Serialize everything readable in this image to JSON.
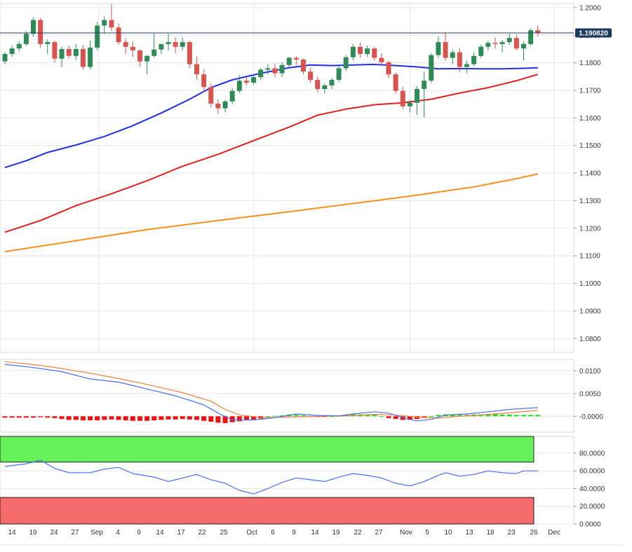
{
  "colors": {
    "up": "#2e8b57",
    "down": "#d9534f",
    "sma_short": "#2030e0",
    "sma_mid": "#e02020",
    "sma_long": "#f5901e",
    "macd_line": "#4a6cf0",
    "signal_line": "#f08040",
    "hist_pos": "#22dd22",
    "hist_neg": "#ee1111",
    "rsi_line": "#4a6cf0",
    "overbought": "#66f05a",
    "oversold": "#f56b6b",
    "grid": "#e6e6e6",
    "price_tag": "#1f3a5f"
  },
  "chart_data": [
    {
      "type": "candlestick",
      "panel": "price",
      "ylim": [
        1.075,
        1.2015
      ],
      "y_ticks": [
        "1.2000",
        "1.1900",
        "1.1800",
        "1.1700",
        "1.1600",
        "1.1500",
        "1.1400",
        "1.1300",
        "1.1200",
        "1.1100",
        "1.1000",
        "1.0900",
        "1.0800"
      ],
      "y_tick_values": [
        1.2,
        1.19,
        1.18,
        1.17,
        1.16,
        1.15,
        1.14,
        1.13,
        1.12,
        1.11,
        1.1,
        1.09,
        1.08
      ],
      "last_price": "1.190820",
      "last_price_value": 1.19082,
      "x_labels": [
        "14",
        "19",
        "24",
        "27",
        "Sep",
        "4",
        "9",
        "14",
        "17",
        "22",
        "25",
        "Oct",
        "6",
        "9",
        "14",
        "19",
        "22",
        "27",
        "Nov",
        "5",
        "10",
        "13",
        "18",
        "23",
        "26",
        "Dec"
      ],
      "candles": [
        [
          1.1805,
          1.1838,
          1.1795,
          1.1832
        ],
        [
          1.1832,
          1.1862,
          1.1822,
          1.1852
        ],
        [
          1.1852,
          1.1878,
          1.1842,
          1.1868
        ],
        [
          1.1868,
          1.1915,
          1.1862,
          1.1905
        ],
        [
          1.1905,
          1.1965,
          1.1895,
          1.1955
        ],
        [
          1.1955,
          1.1962,
          1.1855,
          1.1868
        ],
        [
          1.1868,
          1.1885,
          1.1832,
          1.1875
        ],
        [
          1.1875,
          1.188,
          1.18,
          1.1815
        ],
        [
          1.1815,
          1.1858,
          1.1785,
          1.185
        ],
        [
          1.185,
          1.1862,
          1.1815,
          1.1825
        ],
        [
          1.1825,
          1.1868,
          1.181,
          1.185
        ],
        [
          1.185,
          1.1865,
          1.1775,
          1.1785
        ],
        [
          1.1785,
          1.188,
          1.1775,
          1.1855
        ],
        [
          1.1855,
          1.1948,
          1.1845,
          1.1935
        ],
        [
          1.1935,
          1.1968,
          1.1905,
          1.1955
        ],
        [
          1.1955,
          1.2012,
          1.1915,
          1.1928
        ],
        [
          1.1928,
          1.1942,
          1.1865,
          1.1875
        ],
        [
          1.1875,
          1.1888,
          1.1832,
          1.1858
        ],
        [
          1.1858,
          1.1878,
          1.1822,
          1.1845
        ],
        [
          1.1845,
          1.1848,
          1.1785,
          1.1805
        ],
        [
          1.1805,
          1.1828,
          1.1758,
          1.1825
        ],
        [
          1.1825,
          1.1908,
          1.1818,
          1.1848
        ],
        [
          1.1848,
          1.1868,
          1.1832,
          1.1868
        ],
        [
          1.1868,
          1.1905,
          1.1845,
          1.1875
        ],
        [
          1.1875,
          1.1892,
          1.1835,
          1.1858
        ],
        [
          1.1858,
          1.1892,
          1.1845,
          1.1875
        ],
        [
          1.1875,
          1.188,
          1.178,
          1.1795
        ],
        [
          1.1795,
          1.1822,
          1.1738,
          1.1758
        ],
        [
          1.1758,
          1.1778,
          1.1695,
          1.1712
        ],
        [
          1.1712,
          1.1725,
          1.1638,
          1.1652
        ],
        [
          1.1652,
          1.1668,
          1.1615,
          1.1635
        ],
        [
          1.1635,
          1.1665,
          1.162,
          1.166
        ],
        [
          1.166,
          1.1708,
          1.165,
          1.1698
        ],
        [
          1.1698,
          1.1755,
          1.169,
          1.1735
        ],
        [
          1.1735,
          1.1748,
          1.1718,
          1.1728
        ],
        [
          1.1728,
          1.1752,
          1.172,
          1.1748
        ],
        [
          1.1748,
          1.1782,
          1.1738,
          1.1775
        ],
        [
          1.1775,
          1.1795,
          1.1758,
          1.178
        ],
        [
          1.178,
          1.1798,
          1.1748,
          1.1762
        ],
        [
          1.1762,
          1.1802,
          1.1748,
          1.1792
        ],
        [
          1.1792,
          1.1822,
          1.1785,
          1.1818
        ],
        [
          1.1818,
          1.1825,
          1.1792,
          1.1812
        ],
        [
          1.1812,
          1.1815,
          1.1758,
          1.1768
        ],
        [
          1.1768,
          1.1782,
          1.1728,
          1.1738
        ],
        [
          1.1738,
          1.175,
          1.1692,
          1.1705
        ],
        [
          1.1705,
          1.1725,
          1.169,
          1.1718
        ],
        [
          1.1718,
          1.1745,
          1.1705,
          1.1738
        ],
        [
          1.1738,
          1.179,
          1.173,
          1.178
        ],
        [
          1.178,
          1.1828,
          1.177,
          1.182
        ],
        [
          1.182,
          1.1868,
          1.1808,
          1.1858
        ],
        [
          1.1858,
          1.1872,
          1.1818,
          1.1832
        ],
        [
          1.1832,
          1.1862,
          1.1822,
          1.1852
        ],
        [
          1.1852,
          1.1858,
          1.1808,
          1.1818
        ],
        [
          1.1818,
          1.1835,
          1.1795,
          1.1802
        ],
        [
          1.1802,
          1.1808,
          1.1745,
          1.1758
        ],
        [
          1.1758,
          1.1765,
          1.1688,
          1.1698
        ],
        [
          1.1698,
          1.1712,
          1.1632,
          1.1642
        ],
        [
          1.1642,
          1.1665,
          1.162,
          1.1655
        ],
        [
          1.1655,
          1.1715,
          1.1612,
          1.1705
        ],
        [
          1.1705,
          1.1768,
          1.1602,
          1.1735
        ],
        [
          1.1735,
          1.1835,
          1.1728,
          1.1828
        ],
        [
          1.1828,
          1.1895,
          1.1818,
          1.1875
        ],
        [
          1.1875,
          1.1912,
          1.1808,
          1.1818
        ],
        [
          1.1818,
          1.1848,
          1.1795,
          1.1838
        ],
        [
          1.1838,
          1.1852,
          1.1765,
          1.1785
        ],
        [
          1.1785,
          1.1808,
          1.1762,
          1.1795
        ],
        [
          1.1795,
          1.1838,
          1.1788,
          1.1825
        ],
        [
          1.1825,
          1.1865,
          1.1818,
          1.1858
        ],
        [
          1.1858,
          1.188,
          1.1845,
          1.1872
        ],
        [
          1.1872,
          1.1892,
          1.1852,
          1.1868
        ],
        [
          1.1868,
          1.1882,
          1.1838,
          1.1875
        ],
        [
          1.1875,
          1.1905,
          1.1865,
          1.189
        ],
        [
          1.189,
          1.1902,
          1.1845,
          1.1852
        ],
        [
          1.1852,
          1.1878,
          1.1808,
          1.1868
        ],
        [
          1.1868,
          1.1925,
          1.1862,
          1.1918
        ],
        [
          1.1918,
          1.1935,
          1.1895,
          1.1908
        ]
      ],
      "sma_short": [
        [
          0,
          1.142
        ],
        [
          3,
          1.1445
        ],
        [
          6,
          1.1475
        ],
        [
          10,
          1.1502
        ],
        [
          14,
          1.1533
        ],
        [
          18,
          1.1572
        ],
        [
          22,
          1.1618
        ],
        [
          26,
          1.1668
        ],
        [
          29,
          1.171
        ],
        [
          32,
          1.1738
        ],
        [
          36,
          1.1762
        ],
        [
          40,
          1.1782
        ],
        [
          43,
          1.1792
        ],
        [
          46,
          1.179
        ],
        [
          49,
          1.1792
        ],
        [
          52,
          1.1794
        ],
        [
          55,
          1.179
        ],
        [
          58,
          1.1785
        ],
        [
          61,
          1.1778
        ],
        [
          64,
          1.1779
        ],
        [
          67,
          1.1778
        ],
        [
          70,
          1.1778
        ],
        [
          73,
          1.178
        ],
        [
          75,
          1.1782
        ]
      ],
      "sma_mid": [
        [
          0,
          1.1186
        ],
        [
          5,
          1.1228
        ],
        [
          10,
          1.1282
        ],
        [
          15,
          1.1325
        ],
        [
          20,
          1.1372
        ],
        [
          25,
          1.1425
        ],
        [
          30,
          1.1468
        ],
        [
          35,
          1.1518
        ],
        [
          40,
          1.1567
        ],
        [
          44,
          1.161
        ],
        [
          48,
          1.1632
        ],
        [
          52,
          1.1648
        ],
        [
          56,
          1.1655
        ],
        [
          60,
          1.1668
        ],
        [
          64,
          1.169
        ],
        [
          68,
          1.171
        ],
        [
          72,
          1.1735
        ],
        [
          75,
          1.1758
        ]
      ],
      "sma_long": [
        [
          0,
          1.1115
        ],
        [
          10,
          1.1155
        ],
        [
          20,
          1.1195
        ],
        [
          30,
          1.1228
        ],
        [
          40,
          1.126
        ],
        [
          50,
          1.1293
        ],
        [
          58,
          1.132
        ],
        [
          66,
          1.135
        ],
        [
          72,
          1.138
        ],
        [
          75,
          1.1397
        ]
      ]
    },
    {
      "type": "macd",
      "panel": "macd",
      "ylim": [
        -0.0035,
        0.0125
      ],
      "y_ticks": [
        "0.0100",
        "0.0050",
        "-0.0000"
      ],
      "y_tick_values": [
        0.01,
        0.005,
        0
      ],
      "macd": [
        [
          0,
          0.0114
        ],
        [
          4,
          0.0107
        ],
        [
          8,
          0.0098
        ],
        [
          12,
          0.0082
        ],
        [
          16,
          0.0075
        ],
        [
          20,
          0.006
        ],
        [
          24,
          0.0045
        ],
        [
          28,
          0.0025
        ],
        [
          30,
          0.0007
        ],
        [
          32,
          -0.0008
        ],
        [
          35,
          -0.0008
        ],
        [
          38,
          -0.0003
        ],
        [
          41,
          0.0005
        ],
        [
          44,
          0.0002
        ],
        [
          47,
          0.0001
        ],
        [
          49,
          0.0005
        ],
        [
          52,
          0.001
        ],
        [
          54,
          0.0007
        ],
        [
          56,
          -0.0003
        ],
        [
          58,
          -0.001
        ],
        [
          60,
          -0.0007
        ],
        [
          62,
          0.0003
        ],
        [
          65,
          0.0005
        ],
        [
          68,
          0.001
        ],
        [
          71,
          0.0015
        ],
        [
          73,
          0.0017
        ],
        [
          75,
          0.0019
        ]
      ],
      "signal": [
        [
          0,
          0.012
        ],
        [
          5,
          0.0112
        ],
        [
          10,
          0.01
        ],
        [
          15,
          0.0086
        ],
        [
          20,
          0.007
        ],
        [
          25,
          0.0052
        ],
        [
          29,
          0.0033
        ],
        [
          31,
          0.0015
        ],
        [
          33,
          0.0003
        ],
        [
          36,
          -0.0003
        ],
        [
          40,
          -0.0002
        ],
        [
          44,
          0.0
        ],
        [
          48,
          0.0001
        ],
        [
          52,
          0.0004
        ],
        [
          55,
          0.0003
        ],
        [
          58,
          -0.0002
        ],
        [
          61,
          -0.0004
        ],
        [
          64,
          0.0
        ],
        [
          68,
          0.0004
        ],
        [
          72,
          0.0009
        ],
        [
          75,
          0.0013
        ]
      ],
      "histogram": [
        -0.0003,
        -0.0003,
        -0.0003,
        -0.0003,
        -0.0003,
        -0.0002,
        -0.0003,
        -0.0004,
        -0.0006,
        -0.0008,
        -0.0008,
        -0.0009,
        -0.0009,
        -0.0009,
        -0.0008,
        -0.0007,
        -0.0008,
        -0.0009,
        -0.001,
        -0.001,
        -0.001,
        -0.0009,
        -0.0008,
        -0.0007,
        -0.0007,
        -0.0006,
        -0.0007,
        -0.0008,
        -0.001,
        -0.0012,
        -0.0014,
        -0.0015,
        -0.0013,
        -0.0011,
        -0.0009,
        -0.0007,
        -0.0005,
        0.0,
        0.0001,
        0.0002,
        0.0004,
        0.0003,
        0.0002,
        0.0,
        -0.0001,
        -0.0001,
        0.0,
        0.0001,
        0.0003,
        0.0005,
        0.0004,
        0.0004,
        0.0003,
        0.0,
        -0.0004,
        -0.0006,
        -0.0008,
        -0.0008,
        -0.0006,
        -0.0003,
        0.0,
        0.0003,
        0.0004,
        0.0004,
        0.0003,
        0.0003,
        0.0004,
        0.0004,
        0.0005,
        0.0005,
        0.0004,
        0.0004,
        0.0003,
        0.0003,
        0.0003,
        0.0003
      ]
    },
    {
      "type": "line",
      "panel": "rsi",
      "ylim": [
        0,
        99
      ],
      "y_ticks": [
        "80.0000",
        "60.0000",
        "40.0000",
        "20.0000",
        "0.0000"
      ],
      "y_tick_values": [
        80,
        60,
        40,
        20,
        0
      ],
      "overbought_level": 70,
      "oversold_level": 30,
      "rsi": [
        [
          0,
          65
        ],
        [
          3,
          68
        ],
        [
          5,
          72
        ],
        [
          7,
          63
        ],
        [
          9,
          58
        ],
        [
          12,
          58
        ],
        [
          14,
          62
        ],
        [
          16,
          64
        ],
        [
          18,
          57
        ],
        [
          21,
          53
        ],
        [
          23,
          48
        ],
        [
          25,
          52
        ],
        [
          27,
          56
        ],
        [
          29,
          50
        ],
        [
          31,
          46
        ],
        [
          33,
          38
        ],
        [
          35,
          34
        ],
        [
          37,
          40
        ],
        [
          39,
          47
        ],
        [
          41,
          52
        ],
        [
          43,
          50
        ],
        [
          45,
          48
        ],
        [
          47,
          53
        ],
        [
          49,
          57
        ],
        [
          51,
          55
        ],
        [
          53,
          52
        ],
        [
          55,
          46
        ],
        [
          57,
          43
        ],
        [
          59,
          48
        ],
        [
          61,
          55
        ],
        [
          62,
          58
        ],
        [
          64,
          54
        ],
        [
          66,
          56
        ],
        [
          68,
          60
        ],
        [
          70,
          58
        ],
        [
          72,
          57
        ],
        [
          73,
          60
        ],
        [
          75,
          60
        ]
      ]
    }
  ]
}
